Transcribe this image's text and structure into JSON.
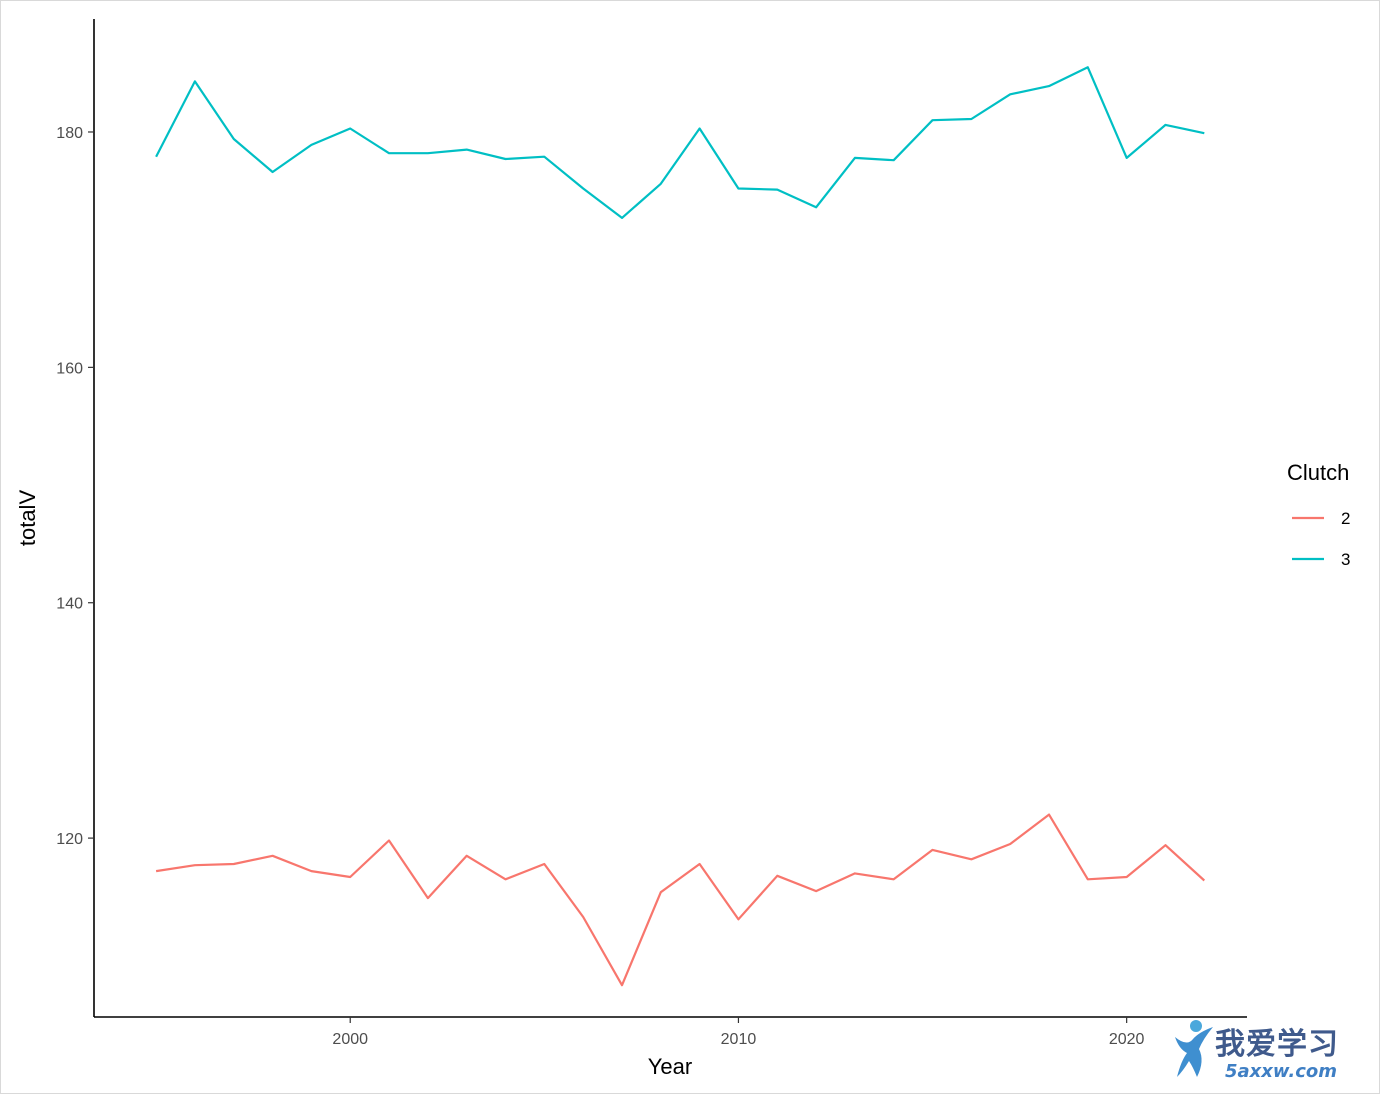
{
  "chart_data": {
    "type": "line",
    "title": "",
    "xlabel": "Year",
    "ylabel": "totalV",
    "xlim": [
      1993.4,
      2023.1
    ],
    "ylim": [
      104.8,
      189.6
    ],
    "x_ticks": [
      2000,
      2010,
      2020
    ],
    "x_tick_labels": [
      "2000",
      "2010",
      "2020"
    ],
    "y_ticks": [
      120,
      140,
      160,
      180
    ],
    "y_tick_labels": [
      "120",
      "140",
      "160",
      "180"
    ],
    "grid": false,
    "legend": {
      "title": "Clutch",
      "position": "right"
    },
    "x": [
      1995,
      1996,
      1997,
      1998,
      1999,
      2000,
      2001,
      2002,
      2003,
      2004,
      2005,
      2006,
      2007,
      2008,
      2009,
      2010,
      2011,
      2012,
      2013,
      2014,
      2015,
      2016,
      2017,
      2018,
      2019,
      2020,
      2021,
      2022
    ],
    "series": [
      {
        "name": "2",
        "color": "#F8766D",
        "values": [
          117.2,
          117.7,
          117.8,
          118.5,
          117.2,
          116.7,
          119.8,
          114.9,
          118.5,
          116.5,
          117.8,
          113.3,
          107.5,
          115.4,
          117.8,
          113.1,
          116.8,
          115.5,
          117.0,
          116.5,
          119.0,
          118.2,
          119.5,
          122.0,
          116.5,
          116.7,
          119.4,
          116.4
        ]
      },
      {
        "name": "3",
        "color": "#00BFC4",
        "values": [
          177.9,
          184.3,
          179.4,
          176.6,
          178.9,
          180.3,
          178.2,
          178.2,
          178.5,
          177.7,
          177.9,
          175.2,
          172.7,
          175.6,
          180.3,
          175.2,
          175.1,
          173.6,
          177.8,
          177.6,
          181.0,
          181.1,
          183.2,
          183.9,
          185.5,
          177.8,
          180.6,
          179.9
        ]
      }
    ]
  },
  "watermark": {
    "cn": "我爱学习",
    "url": "5axxw.com"
  }
}
